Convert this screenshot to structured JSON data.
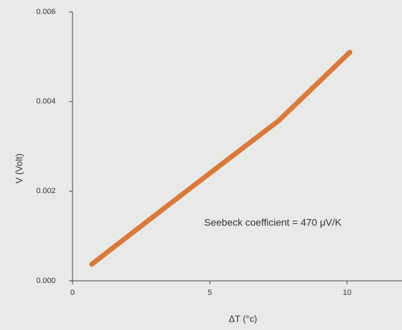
{
  "chart_data": {
    "type": "line",
    "x_label": "ΔT (°c)",
    "y_label": "V (Volt)",
    "annotation": "Seebeck coefficient = 470 μV/K",
    "x": [
      0.7,
      3,
      5,
      7.5,
      10.1
    ],
    "series": [
      {
        "name": "V",
        "color": "#d97a3c",
        "values": [
          0.00037,
          0.00146,
          0.0024,
          0.00357,
          0.0051
        ]
      }
    ],
    "xlim": [
      0,
      12
    ],
    "ylim": [
      0,
      0.006
    ],
    "xticks": [
      0,
      5,
      10
    ],
    "yticks": [
      {
        "value": 0,
        "label": "0.000"
      },
      0.002,
      0.004,
      0.006
    ]
  }
}
